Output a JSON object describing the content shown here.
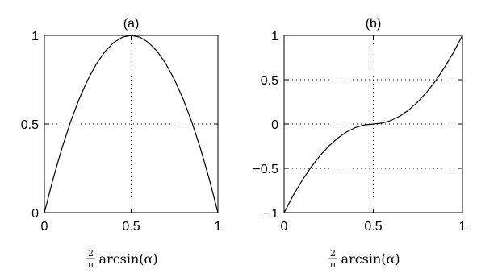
{
  "chart_data": [
    {
      "type": "line",
      "title": "(a)",
      "xlabel": "arcsin(α)",
      "xlabel_fraction_num": "2",
      "xlabel_fraction_den": "π",
      "xlim": [
        0,
        1
      ],
      "ylim": [
        0,
        1
      ],
      "xticks": [
        0,
        0.5,
        1
      ],
      "xtick_labels": [
        "0",
        "0.5",
        "1"
      ],
      "yticks": [
        0,
        0.5,
        1
      ],
      "ytick_labels": [
        "0",
        "0.5",
        "1"
      ],
      "grid": true,
      "series": [
        {
          "color": "#000000",
          "x": [
            0,
            0.05,
            0.1,
            0.15,
            0.2,
            0.25,
            0.3,
            0.35,
            0.4,
            0.45,
            0.5,
            0.55,
            0.6,
            0.65,
            0.7,
            0.75,
            0.8,
            0.85,
            0.9,
            0.95,
            1
          ],
          "y": [
            0,
            0.19,
            0.36,
            0.51,
            0.64,
            0.75,
            0.84,
            0.91,
            0.96,
            0.99,
            1,
            0.99,
            0.96,
            0.91,
            0.84,
            0.75,
            0.64,
            0.51,
            0.36,
            0.19,
            0
          ]
        }
      ]
    },
    {
      "type": "line",
      "title": "(b)",
      "xlabel": "arcsin(α)",
      "xlabel_fraction_num": "2",
      "xlabel_fraction_den": "π",
      "xlim": [
        0,
        1
      ],
      "ylim": [
        -1,
        1
      ],
      "xticks": [
        0,
        0.5,
        1
      ],
      "xtick_labels": [
        "0",
        "0.5",
        "1"
      ],
      "yticks": [
        -1,
        -0.5,
        0,
        0.5,
        1
      ],
      "ytick_labels": [
        "−1",
        "−0.5",
        "0",
        "0.5",
        "1"
      ],
      "grid": true,
      "series": [
        {
          "color": "#000000",
          "x": [
            0,
            0.05,
            0.1,
            0.15,
            0.2,
            0.25,
            0.3,
            0.35,
            0.4,
            0.45,
            0.5,
            0.55,
            0.6,
            0.65,
            0.7,
            0.75,
            0.8,
            0.85,
            0.9,
            0.95,
            1
          ],
          "y": [
            -1,
            -0.81,
            -0.64,
            -0.49,
            -0.36,
            -0.25,
            -0.16,
            -0.09,
            -0.04,
            -0.01,
            0,
            0.01,
            0.04,
            0.09,
            0.16,
            0.25,
            0.36,
            0.49,
            0.64,
            0.81,
            1
          ]
        }
      ]
    }
  ]
}
